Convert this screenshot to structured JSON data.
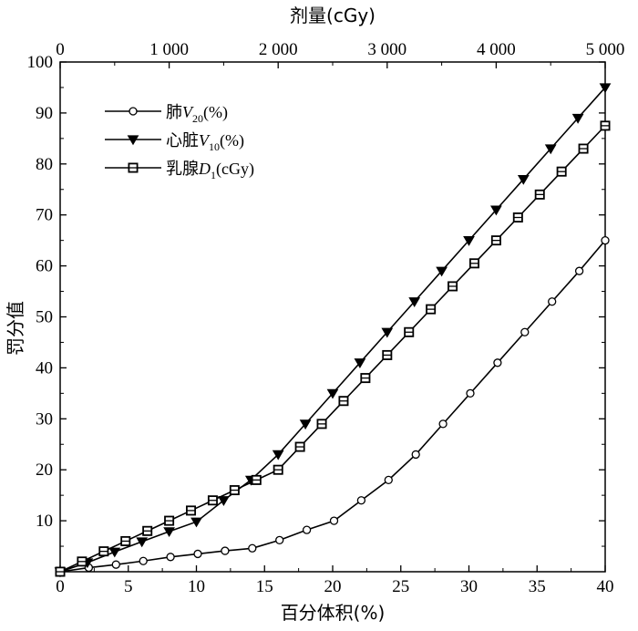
{
  "chart_data": {
    "type": "line",
    "xlabel": "百分体积(%)",
    "ylabel": "罚分值",
    "x2label": "剂量(cGy)",
    "xlim": [
      0,
      40
    ],
    "ylim": [
      0,
      100
    ],
    "x2lim": [
      0,
      5000
    ],
    "xticks": [
      0,
      5,
      10,
      15,
      20,
      25,
      30,
      35,
      40
    ],
    "yticks": [
      10,
      20,
      30,
      40,
      50,
      60,
      70,
      80,
      90,
      100
    ],
    "x2ticks": [
      0,
      1000,
      2000,
      3000,
      4000,
      5000
    ],
    "xtick_labels": [
      "0",
      "5",
      "10",
      "15",
      "20",
      "25",
      "30",
      "35",
      "40"
    ],
    "ytick_labels": [
      "10",
      "20",
      "30",
      "40",
      "50",
      "60",
      "70",
      "80",
      "90",
      "100"
    ],
    "x2tick_labels": [
      "0",
      "1 000",
      "2 000",
      "3 000",
      "4 000",
      "5 000"
    ],
    "origin_label": "0",
    "legend_position": "top-left",
    "grid": false,
    "series": [
      {
        "name": "肺V20(%)",
        "legend": {
          "main": "肺",
          "var": "V",
          "sub": "20",
          "unit": "(%)"
        },
        "marker": "circle",
        "axis": "bottom",
        "x": [
          0,
          2.1,
          4.1,
          6.1,
          8.1,
          10.1,
          12.1,
          14.1,
          16.1,
          18.1,
          20.1,
          22.1,
          24.1,
          26.1,
          28.1,
          30.1,
          32.1,
          34.1,
          36.1,
          38.1,
          40.0
        ],
        "values": [
          0,
          0.8,
          1.4,
          2.1,
          2.9,
          3.5,
          4.1,
          4.6,
          6.2,
          8.2,
          10.0,
          14.0,
          18.0,
          23.0,
          29.0,
          35.0,
          41.0,
          47.0,
          53.0,
          59.0,
          65.0
        ]
      },
      {
        "name": "心脏V10(%)",
        "legend": {
          "main": "心脏",
          "var": "V",
          "sub": "10",
          "unit": "(%)"
        },
        "marker": "triangle-down",
        "axis": "bottom",
        "x": [
          0,
          2.0,
          4.0,
          6.0,
          8.0,
          10.0,
          12.0,
          14.0,
          16.0,
          18.0,
          20.0,
          22.0,
          24.0,
          26.0,
          28.0,
          30.0,
          32.0,
          34.0,
          36.0,
          38.0,
          40.0
        ],
        "values": [
          0,
          1.8,
          3.9,
          5.9,
          7.9,
          9.8,
          14.0,
          18.0,
          23.0,
          29.0,
          35.0,
          41.0,
          47.0,
          53.0,
          59.0,
          65.0,
          71.0,
          77.0,
          83.0,
          89.0,
          95.0
        ]
      },
      {
        "name": "乳腺D1(cGy)",
        "legend": {
          "main": "乳腺",
          "var": "D",
          "sub": "1",
          "unit": "(cGy)"
        },
        "marker": "square",
        "axis": "top",
        "x": [
          0,
          200,
          400,
          600,
          800,
          1000,
          1200,
          1400,
          1600,
          1800,
          2000,
          2200,
          2400,
          2600,
          2800,
          3000,
          3200,
          3400,
          3600,
          3800,
          4000,
          4200,
          4400,
          4600,
          4800,
          5000
        ],
        "values": [
          0,
          2.0,
          4.0,
          6.0,
          8.0,
          10.0,
          12.0,
          14.0,
          16.0,
          18.0,
          20.0,
          24.5,
          29.0,
          33.5,
          38.0,
          42.5,
          47.0,
          51.5,
          56.0,
          60.5,
          65.0,
          69.5,
          74.0,
          78.5,
          83.0,
          87.5
        ]
      }
    ]
  }
}
